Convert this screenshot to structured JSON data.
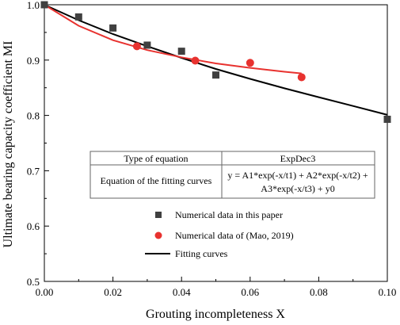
{
  "chart_data": {
    "type": "scatter",
    "xlabel": "Grouting incompleteness X",
    "ylabel": "Ultimate bearing capacity coefficient MI",
    "xlim": [
      0,
      0.1
    ],
    "ylim": [
      0.5,
      1.0
    ],
    "x_ticks": [
      0,
      0.02,
      0.04,
      0.06,
      0.08,
      0.1
    ],
    "x_tick_labels": [
      "0.00",
      "0.02",
      "0.04",
      "0.06",
      "0.08",
      "0.10"
    ],
    "y_ticks": [
      0.5,
      0.6,
      0.7,
      0.8,
      0.9,
      1.0
    ],
    "y_tick_labels": [
      "0.5",
      "0.6",
      "0.7",
      "0.8",
      "0.9",
      "1.0"
    ],
    "grid": false,
    "legend_position": "bottom-center",
    "series": [
      {
        "name": "Numerical data in this paper",
        "marker": "square",
        "color": "#404040",
        "x": [
          0.0,
          0.01,
          0.02,
          0.03,
          0.04,
          0.05,
          0.1
        ],
        "y": [
          1.0,
          0.978,
          0.958,
          0.927,
          0.916,
          0.873,
          0.793
        ]
      },
      {
        "name": "Numerical data of (Mao, 2019)",
        "marker": "circle",
        "color": "#e8322f",
        "x": [
          0.027,
          0.044,
          0.06,
          0.075
        ],
        "y": [
          0.925,
          0.899,
          0.895,
          0.869
        ]
      },
      {
        "name": "Fitting curves",
        "marker": "line",
        "color": "#000000",
        "x": [
          0.0,
          0.01,
          0.02,
          0.03,
          0.04,
          0.05,
          0.06,
          0.07,
          0.08,
          0.09,
          0.1
        ],
        "y": [
          1.0,
          0.972,
          0.947,
          0.925,
          0.904,
          0.884,
          0.866,
          0.849,
          0.833,
          0.817,
          0.801
        ]
      },
      {
        "name": "",
        "marker": "line",
        "color": "#e8322f",
        "x": [
          0.0,
          0.01,
          0.02,
          0.03,
          0.04,
          0.05,
          0.06,
          0.07,
          0.075
        ],
        "y": [
          1.0,
          0.962,
          0.936,
          0.918,
          0.905,
          0.894,
          0.886,
          0.879,
          0.876
        ]
      }
    ],
    "annotation_table": {
      "rows": [
        [
          "Type of equation",
          "ExpDec3"
        ],
        [
          "Equation of the fitting curves",
          "y = A1*exp(-x/t1) + A2*exp(-x/t2) +",
          "A3*exp(-x/t3) + y0"
        ]
      ]
    }
  }
}
